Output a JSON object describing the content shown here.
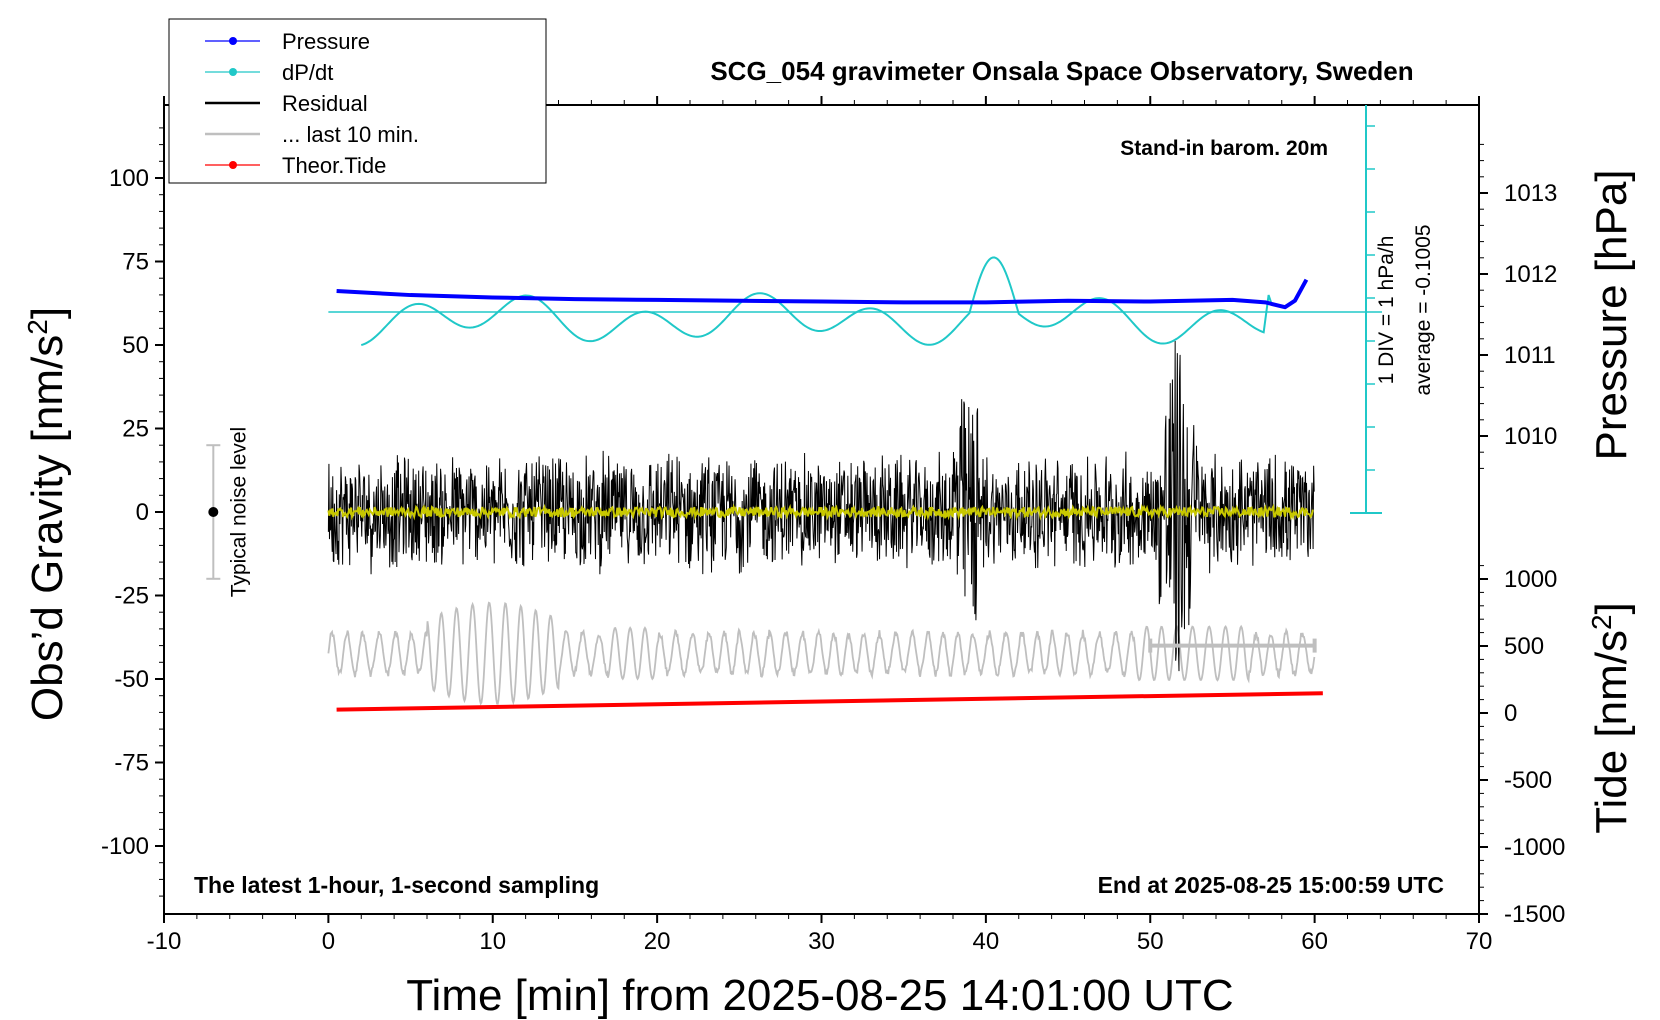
{
  "chart_data": {
    "type": "line",
    "title": "SCG_054 gravimeter Onsala Space Observatory, Sweden",
    "xlabel": "Time [min] from 2025-08-25 14:01:00 UTC",
    "xlim": [
      -10,
      70
    ],
    "xticks": [
      -10,
      0,
      10,
      20,
      30,
      40,
      50,
      60,
      70
    ],
    "ylabel_left": "Obs’d Gravity [nm/s",
    "ylabel_left_sup": "2",
    "ylabel_left_end": "]",
    "ylim_left": [
      -120,
      120
    ],
    "yticks_left": [
      100,
      75,
      50,
      25,
      0,
      -25,
      -50,
      -75,
      -100
    ],
    "ylabel_right_top": "Pressure [hPa]",
    "yticks_right_top": [
      1013,
      1012,
      1011,
      1010
    ],
    "ylabel_right_bottom": "Tide [nm/s",
    "ylabel_right_bottom_sup": "2",
    "ylabel_right_bottom_end": "]",
    "yticks_right_bottom": [
      1000,
      500,
      0,
      -500,
      -1000,
      -1500
    ],
    "legend": {
      "placement": "top-left",
      "entries": [
        {
          "label": "Pressure",
          "color": "#0000ff",
          "marker": true
        },
        {
          "label": "dP/dt",
          "color": "#20c8c8",
          "marker": true
        },
        {
          "label": "Residual",
          "color": "#000000",
          "marker": false
        },
        {
          "label": "... last 10 min.",
          "color": "#bfbfbf",
          "marker": false
        },
        {
          "label": "Theor.Tide",
          "color": "#ff0000",
          "marker": true
        }
      ]
    },
    "annotations": {
      "barometer": "Stand-in barom. 20m",
      "sampling": "The latest 1-hour, 1-second sampling",
      "end_time": "End at 2025-08-25 15:00:59 UTC",
      "noise_label": "Typical noise level",
      "dpdt_scale": "1 DIV = 1 hPa/h",
      "dpdt_average": "average = -0.1005"
    },
    "series": {
      "pressure": {
        "name": "Pressure",
        "x": [
          0.5,
          5,
          10,
          15,
          20,
          25,
          30,
          35,
          40,
          45,
          50,
          55,
          57,
          58.2,
          58.8,
          59.5
        ],
        "values": [
          1011.79,
          1011.74,
          1011.71,
          1011.69,
          1011.68,
          1011.67,
          1011.66,
          1011.65,
          1011.65,
          1011.67,
          1011.66,
          1011.68,
          1011.65,
          1011.59,
          1011.67,
          1011.93
        ]
      },
      "theoretical_tide": {
        "name": "Theor.Tide",
        "x_start": 0.5,
        "x_end": 60.5,
        "value_start": 48,
        "value_end": 170
      },
      "noise_level": {
        "center": 0,
        "low": -20,
        "high": 20,
        "x": -7
      },
      "last_10_min_bar": {
        "x_start": 50,
        "x_end": 60,
        "y": -40
      }
    }
  }
}
